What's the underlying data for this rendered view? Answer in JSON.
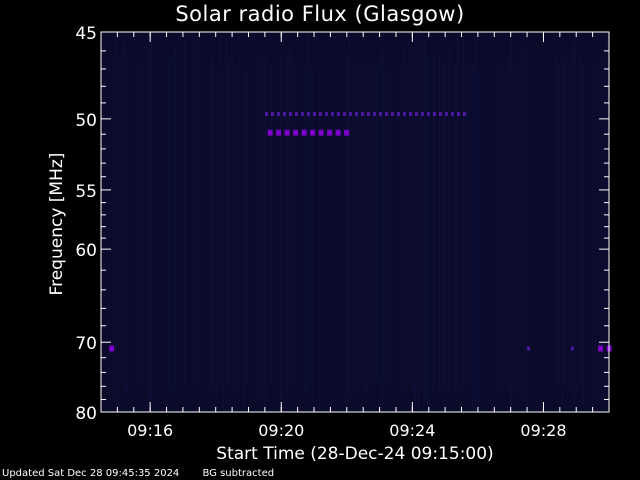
{
  "chart_data": {
    "type": "heatmap",
    "title": "Solar radio Flux (Glasgow)",
    "xlabel": "Start Time (28-Dec-24 09:15:00)",
    "ylabel": "Frequency [MHz]",
    "ylim": [
      45,
      80
    ],
    "xlim": [
      "09:14:30",
      "09:30:00"
    ],
    "y_scale": "reciprocal",
    "x_ticks": [
      "09:16",
      "09:20",
      "09:24",
      "09:28"
    ],
    "y_ticks": [
      45,
      50,
      55,
      60,
      70,
      80
    ],
    "background_color": "#0a0a2a",
    "emission_color": "#7a00c8",
    "emission_features": [
      {
        "time_start": "09:19:30",
        "time_end": "09:25:40",
        "frequency": 49.7,
        "intensity": "moderate"
      },
      {
        "time_start": "09:19:35",
        "time_end": "09:22:05",
        "frequency": 50.9,
        "intensity": "strong"
      },
      {
        "time_start": "09:14:45",
        "time_end": "09:14:55",
        "frequency": 70.8,
        "intensity": "strong"
      },
      {
        "time_start": "09:27:30",
        "time_end": "09:27:40",
        "frequency": 70.8,
        "intensity": "moderate"
      },
      {
        "time_start": "09:28:50",
        "time_end": "09:29:00",
        "frequency": 70.8,
        "intensity": "moderate"
      },
      {
        "time_start": "09:29:40",
        "time_end": "09:30:00",
        "frequency": 70.8,
        "intensity": "strong"
      }
    ]
  },
  "footer": {
    "updated": "Updated Sat Dec 28 09:45:35 2024",
    "note": "BG subtracted"
  }
}
